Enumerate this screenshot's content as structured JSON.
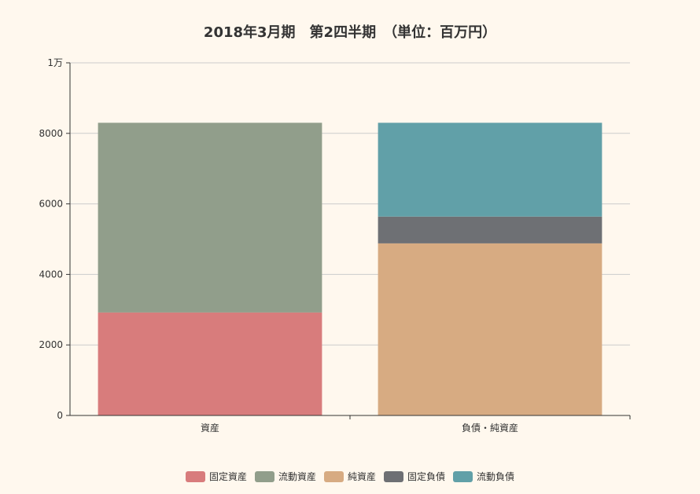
{
  "chart_data": {
    "type": "bar",
    "stacked": true,
    "title": "2018年3月期　第2四半期　（単位：百万円）",
    "categories": [
      "資産",
      "負債・純資産"
    ],
    "y_ticks": [
      "0",
      "2000",
      "4000",
      "6000",
      "8000",
      "1万"
    ],
    "ylim": [
      0,
      10000
    ],
    "grid": true,
    "legend_position": "bottom",
    "series": [
      {
        "name": "固定資産",
        "color": "#d87c7c",
        "values": [
          2920,
          0
        ]
      },
      {
        "name": "流動資産",
        "color": "#919e8b",
        "values": [
          5380,
          0
        ]
      },
      {
        "name": "純資産",
        "color": "#d7ab82",
        "values": [
          0,
          4880
        ]
      },
      {
        "name": "固定負債",
        "color": "#6e7074",
        "values": [
          0,
          760
        ]
      },
      {
        "name": "流動負債",
        "color": "#61a0a8",
        "values": [
          0,
          2660
        ]
      }
    ]
  }
}
